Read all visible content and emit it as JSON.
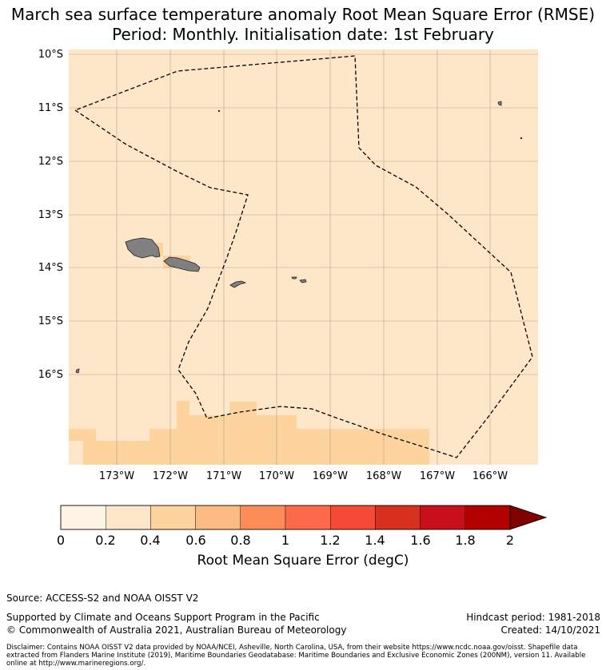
{
  "title": {
    "line1": "March sea surface temperature anomaly Root Mean Square Error (RMSE)",
    "line2": "Period: Monthly. Initialisation date: 1st February"
  },
  "map": {
    "lat_range": [
      -17.7,
      -9.9
    ],
    "lon_range": [
      -173.9,
      -165.2
    ],
    "lat_ticks": [
      "10°S",
      "11°S",
      "12°S",
      "13°S",
      "14°S",
      "15°S",
      "16°S"
    ],
    "lon_ticks": [
      "173°W",
      "172°W",
      "171°W",
      "170°W",
      "169°W",
      "168°W",
      "167°W",
      "166°W"
    ],
    "background_color": "#fee6c9",
    "land_color": "#808080",
    "eez_boundary": "dashed black"
  },
  "colorbar": {
    "label": "Root Mean Square Error (degC)",
    "ticks": [
      "0",
      "0.2",
      "0.4",
      "0.6",
      "0.8",
      "1",
      "1.2",
      "1.4",
      "1.6",
      "1.8",
      "2"
    ],
    "colors": [
      "#fff4e5",
      "#fee6c9",
      "#fdd49e",
      "#fdbb84",
      "#fc8d59",
      "#fd6a4a",
      "#f54a36",
      "#d7301f",
      "#c8101a",
      "#b30000"
    ],
    "extend_color": "#7f0000"
  },
  "footer": {
    "source": "Source: ACCESS-S2 and NOAA OISST V2",
    "support": "Supported by Climate and Oceans Support Program in the Pacific",
    "copyright": "© Commonwealth of Australia 2021, Australian Bureau of Meteorology",
    "hindcast": "Hindcast period: 1981-2018",
    "created": "Created: 14/10/2021",
    "disclaimer": "Disclaimer: Contains NOAA OISST V2 data provided by NOAA/NCEI, Asheville, North Carolina, USA, from their website https://www.ncdc.noaa.gov/oisst. Shapefile data extracted from Flanders Marine Institute (2019), Maritime Boundaries Geodatabase: Maritime Boundaries and Exclusive Economic Zones (200NM), version 11. Available online at http://www.marineregions.org/."
  }
}
